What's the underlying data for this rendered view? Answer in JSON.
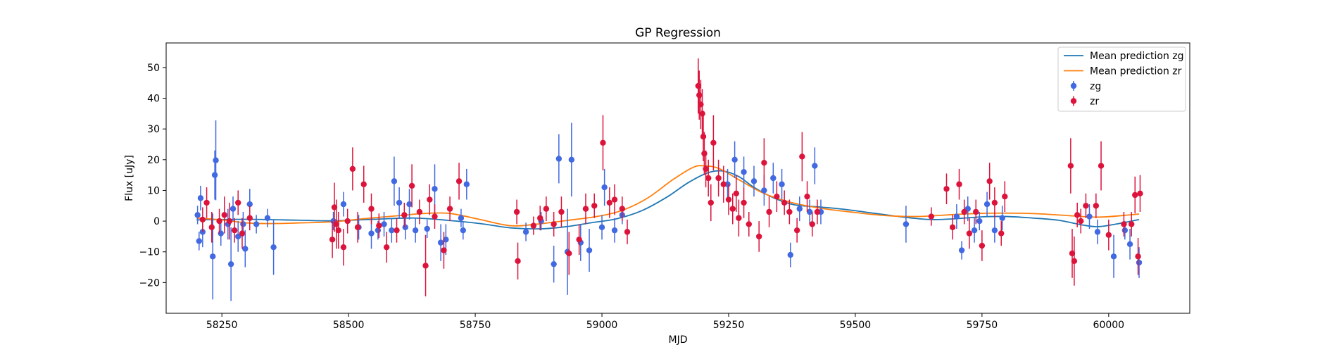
{
  "chart_data": {
    "type": "scatter",
    "title": "GP Regression",
    "xlabel": "MJD",
    "ylabel": "Flux [uJy]",
    "xlim": [
      58140,
      60160
    ],
    "ylim": [
      -30,
      58
    ],
    "xticks": [
      58250,
      58500,
      58750,
      59000,
      59250,
      59500,
      59750,
      60000
    ],
    "yticks": [
      -20,
      -10,
      0,
      10,
      20,
      30,
      40,
      50
    ],
    "grid": false,
    "legend_position": "top-right",
    "lines": [
      {
        "name": "Mean prediction zg",
        "color": "#1f77b4",
        "points": [
          [
            58200,
            0.4
          ],
          [
            58300,
            0.6
          ],
          [
            58400,
            0.3
          ],
          [
            58470,
            0.1
          ],
          [
            58550,
            0.6
          ],
          [
            58630,
            1.0
          ],
          [
            58700,
            0.2
          ],
          [
            58760,
            -0.8
          ],
          [
            58820,
            -2.2
          ],
          [
            58880,
            -2.5
          ],
          [
            58930,
            -1.8
          ],
          [
            58980,
            -0.5
          ],
          [
            59030,
            0.8
          ],
          [
            59080,
            3.5
          ],
          [
            59130,
            8.0
          ],
          [
            59170,
            12.5
          ],
          [
            59210,
            15.8
          ],
          [
            59240,
            16.3
          ],
          [
            59270,
            14.5
          ],
          [
            59300,
            11.0
          ],
          [
            59340,
            7.5
          ],
          [
            59380,
            5.3
          ],
          [
            59430,
            4.6
          ],
          [
            59480,
            3.8
          ],
          [
            59540,
            2.5
          ],
          [
            59600,
            1.2
          ],
          [
            59650,
            0.5
          ],
          [
            59700,
            0.8
          ],
          [
            59750,
            1.4
          ],
          [
            59800,
            1.5
          ],
          [
            59850,
            1.0
          ],
          [
            59900,
            0.3
          ],
          [
            59950,
            -1.3
          ],
          [
            59980,
            -1.8
          ],
          [
            60020,
            -0.8
          ],
          [
            60060,
            0.5
          ]
        ]
      },
      {
        "name": "Mean prediction zr",
        "color": "#ff7f0e",
        "points": [
          [
            58200,
            1.0
          ],
          [
            58250,
            0.4
          ],
          [
            58300,
            -0.6
          ],
          [
            58350,
            -0.8
          ],
          [
            58400,
            -0.6
          ],
          [
            58470,
            -0.2
          ],
          [
            58530,
            0.8
          ],
          [
            58600,
            1.8
          ],
          [
            58650,
            2.5
          ],
          [
            58700,
            2.5
          ],
          [
            58760,
            0.5
          ],
          [
            58820,
            -1.5
          ],
          [
            58870,
            -1.0
          ],
          [
            58930,
            0.2
          ],
          [
            58990,
            1.5
          ],
          [
            59040,
            3.5
          ],
          [
            59090,
            7.5
          ],
          [
            59140,
            13.5
          ],
          [
            59180,
            17.5
          ],
          [
            59200,
            18.0
          ],
          [
            59230,
            17.2
          ],
          [
            59270,
            13.5
          ],
          [
            59320,
            9.0
          ],
          [
            59380,
            5.8
          ],
          [
            59440,
            4.0
          ],
          [
            59500,
            2.8
          ],
          [
            59560,
            1.8
          ],
          [
            59620,
            1.5
          ],
          [
            59680,
            2.0
          ],
          [
            59740,
            2.5
          ],
          [
            59800,
            2.6
          ],
          [
            59860,
            2.4
          ],
          [
            59920,
            1.8
          ],
          [
            59980,
            1.3
          ],
          [
            60040,
            2.0
          ],
          [
            60060,
            2.3
          ]
        ]
      }
    ],
    "series": [
      {
        "name": "zg",
        "color": "#4169e1",
        "points": [
          [
            58202,
            2.0,
            3
          ],
          [
            58205,
            -6.5,
            3
          ],
          [
            58208,
            7.5,
            4
          ],
          [
            58212,
            -3.5,
            5
          ],
          [
            58232,
            -11.5,
            14
          ],
          [
            58236,
            15,
            8
          ],
          [
            58238,
            19.8,
            13
          ],
          [
            58248,
            -4,
            4
          ],
          [
            58262,
            -1,
            5
          ],
          [
            58268,
            -14,
            12
          ],
          [
            58272,
            4,
            4
          ],
          [
            58282,
            -5,
            5
          ],
          [
            58292,
            -1,
            4
          ],
          [
            58296,
            -9,
            6
          ],
          [
            58305,
            5.5,
            5
          ],
          [
            58318,
            -1,
            3
          ],
          [
            58340,
            1,
            3
          ],
          [
            58352,
            -8.5,
            9
          ],
          [
            58470,
            0,
            3
          ],
          [
            58490,
            5.5,
            4
          ],
          [
            58520,
            -2,
            4
          ],
          [
            58545,
            -4,
            5
          ],
          [
            58558,
            -3,
            3
          ],
          [
            58570,
            -1,
            4
          ],
          [
            58585,
            -3,
            4
          ],
          [
            58590,
            13,
            8
          ],
          [
            58600,
            6,
            5
          ],
          [
            58612,
            -2,
            4
          ],
          [
            58620,
            5.5,
            5
          ],
          [
            58632,
            -3,
            4
          ],
          [
            58655,
            -2.5,
            3
          ],
          [
            58670,
            10.5,
            8
          ],
          [
            58682,
            -7,
            6
          ],
          [
            58692,
            -6,
            5
          ],
          [
            58722,
            1,
            3
          ],
          [
            58726,
            -3,
            3
          ],
          [
            58733,
            12,
            5
          ],
          [
            58850,
            -3.5,
            3
          ],
          [
            58880,
            0,
            3
          ],
          [
            58905,
            -14,
            6
          ],
          [
            58915,
            20.3,
            8
          ],
          [
            58932,
            -10,
            14
          ],
          [
            58940,
            20,
            12
          ],
          [
            58958,
            -7,
            6
          ],
          [
            58975,
            -9.5,
            7
          ],
          [
            59000,
            -2,
            4
          ],
          [
            59005,
            11,
            6
          ],
          [
            59025,
            -3,
            4
          ],
          [
            59040,
            2,
            3
          ],
          [
            59248,
            12,
            5
          ],
          [
            59262,
            20,
            6
          ],
          [
            59280,
            16,
            5
          ],
          [
            59300,
            13,
            5
          ],
          [
            59320,
            10,
            5
          ],
          [
            59338,
            14,
            5
          ],
          [
            59355,
            12,
            5
          ],
          [
            59372,
            -11,
            4
          ],
          [
            59390,
            4,
            4
          ],
          [
            59410,
            3,
            4
          ],
          [
            59420,
            18,
            6
          ],
          [
            59432,
            3,
            4
          ],
          [
            59600,
            -1,
            6
          ],
          [
            59700,
            1.5,
            4
          ],
          [
            59710,
            -9.5,
            3
          ],
          [
            59722,
            4,
            4
          ],
          [
            59735,
            -3,
            4
          ],
          [
            59745,
            0,
            3
          ],
          [
            59760,
            5.5,
            4
          ],
          [
            59775,
            -3,
            4
          ],
          [
            59790,
            1,
            4
          ],
          [
            59962,
            1.5,
            4
          ],
          [
            59978,
            -3.5,
            4
          ],
          [
            60010,
            -11.5,
            7
          ],
          [
            60032,
            -3,
            3
          ],
          [
            60042,
            -7.5,
            5
          ],
          [
            60060,
            -13.5,
            5
          ]
        ]
      },
      {
        "name": "zr",
        "color": "#dc143c",
        "points": [
          [
            58212,
            0.5,
            4
          ],
          [
            58220,
            6,
            5
          ],
          [
            58230,
            -2,
            5
          ],
          [
            58245,
            0,
            4
          ],
          [
            58255,
            2,
            6
          ],
          [
            58265,
            0,
            6
          ],
          [
            58275,
            -3,
            4
          ],
          [
            58282,
            6,
            4
          ],
          [
            58290,
            -4,
            5
          ],
          [
            58305,
            1,
            4
          ],
          [
            58468,
            -6,
            6
          ],
          [
            58472,
            4.5,
            8
          ],
          [
            58476,
            -1,
            8
          ],
          [
            58480,
            -3,
            6
          ],
          [
            58490,
            -8.5,
            6
          ],
          [
            58498,
            0,
            4
          ],
          [
            58508,
            17,
            7
          ],
          [
            58518,
            -2,
            5
          ],
          [
            58530,
            12,
            6
          ],
          [
            58545,
            4,
            5
          ],
          [
            58560,
            -1.5,
            4
          ],
          [
            58575,
            -8.5,
            5
          ],
          [
            58595,
            -3,
            4
          ],
          [
            58610,
            2,
            4
          ],
          [
            58625,
            11.5,
            7
          ],
          [
            58640,
            3,
            4
          ],
          [
            58652,
            -14.5,
            10
          ],
          [
            58660,
            7,
            5
          ],
          [
            58670,
            1.5,
            4
          ],
          [
            58688,
            -9.5,
            6
          ],
          [
            58700,
            4,
            4
          ],
          [
            58718,
            13,
            6
          ],
          [
            58832,
            3,
            4
          ],
          [
            58834,
            -13,
            6
          ],
          [
            58865,
            -1.5,
            3
          ],
          [
            58878,
            1,
            4
          ],
          [
            58890,
            4,
            4
          ],
          [
            58905,
            -1,
            4
          ],
          [
            58920,
            3,
            5
          ],
          [
            58935,
            -10.5,
            7
          ],
          [
            58955,
            -6,
            5
          ],
          [
            58968,
            4,
            5
          ],
          [
            58985,
            5,
            4
          ],
          [
            59002,
            25.5,
            9
          ],
          [
            59015,
            6,
            5
          ],
          [
            59025,
            7,
            5
          ],
          [
            59040,
            4,
            4
          ],
          [
            59050,
            -3.5,
            4
          ],
          [
            59190,
            44,
            9
          ],
          [
            59192,
            41,
            8
          ],
          [
            59195,
            38,
            8
          ],
          [
            59198,
            35,
            8
          ],
          [
            59200,
            27.5,
            8
          ],
          [
            59202,
            22,
            7
          ],
          [
            59205,
            17,
            6
          ],
          [
            59210,
            14,
            6
          ],
          [
            59215,
            6,
            6
          ],
          [
            59220,
            25.5,
            9
          ],
          [
            59230,
            14,
            6
          ],
          [
            59240,
            12,
            6
          ],
          [
            59250,
            7,
            5
          ],
          [
            59258,
            4,
            5
          ],
          [
            59265,
            9,
            6
          ],
          [
            59270,
            1,
            6
          ],
          [
            59280,
            6,
            5
          ],
          [
            59290,
            -1,
            4
          ],
          [
            59310,
            -5,
            5
          ],
          [
            59320,
            19,
            8
          ],
          [
            59330,
            3,
            5
          ],
          [
            59345,
            8,
            5
          ],
          [
            59360,
            6,
            4
          ],
          [
            59370,
            3,
            4
          ],
          [
            59385,
            -3,
            4
          ],
          [
            59395,
            21,
            8
          ],
          [
            59405,
            8,
            5
          ],
          [
            59415,
            -1,
            4
          ],
          [
            59425,
            3,
            4
          ],
          [
            59650,
            1.5,
            3
          ],
          [
            59680,
            10.5,
            5
          ],
          [
            59692,
            -2,
            4
          ],
          [
            59705,
            12,
            5
          ],
          [
            59715,
            3,
            4
          ],
          [
            59725,
            -4,
            5
          ],
          [
            59738,
            3,
            4
          ],
          [
            59750,
            -8,
            5
          ],
          [
            59765,
            13,
            6
          ],
          [
            59775,
            6,
            5
          ],
          [
            59788,
            -4,
            4
          ],
          [
            59795,
            8,
            5
          ],
          [
            59925,
            18,
            9
          ],
          [
            59928,
            -10.5,
            8
          ],
          [
            59932,
            -13,
            8
          ],
          [
            59938,
            2,
            4
          ],
          [
            59945,
            0,
            4
          ],
          [
            59955,
            5,
            4
          ],
          [
            59975,
            5,
            4
          ],
          [
            59985,
            18,
            8
          ],
          [
            60000,
            -4.5,
            5
          ],
          [
            60030,
            -1,
            4
          ],
          [
            60045,
            -1,
            4
          ],
          [
            60052,
            8.5,
            6
          ],
          [
            60058,
            -11.5,
            6
          ],
          [
            60062,
            9,
            6
          ]
        ]
      }
    ],
    "legend": [
      {
        "label": "Mean prediction zg",
        "kind": "line",
        "color": "#1f77b4"
      },
      {
        "label": "Mean prediction zr",
        "kind": "line",
        "color": "#ff7f0e"
      },
      {
        "label": "zg",
        "kind": "errorbar",
        "color": "#4169e1"
      },
      {
        "label": "zr",
        "kind": "errorbar",
        "color": "#dc143c"
      }
    ]
  }
}
